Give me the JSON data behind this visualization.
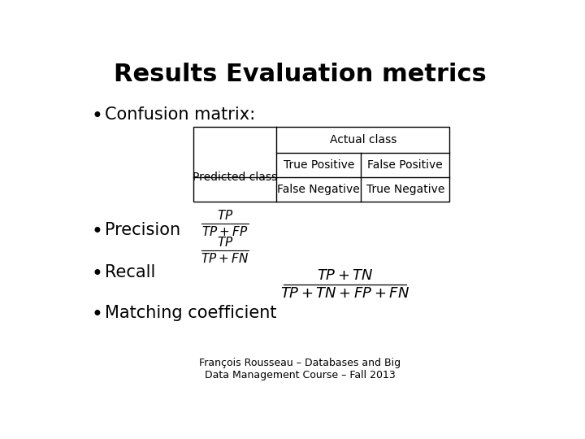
{
  "title": "Results Evaluation metrics",
  "title_fontsize": 22,
  "title_fontweight": "bold",
  "bg_color": "#ffffff",
  "text_color": "#000000",
  "bullet1": "Confusion matrix:",
  "bullet2": "Precision",
  "bullet3": "Recall",
  "bullet4": "Matching coefficient",
  "bullet_fontsize": 15,
  "table_header": "Actual class",
  "table_row_header": "Predicted class",
  "table_cells": [
    [
      "True Positive",
      "False Positive"
    ],
    [
      "False Negative",
      "True Negative"
    ]
  ],
  "table_fontsize": 10,
  "footer": "François Rousseau – Databases and Big\nData Management Course – Fall 2013",
  "footer_fontsize": 9
}
